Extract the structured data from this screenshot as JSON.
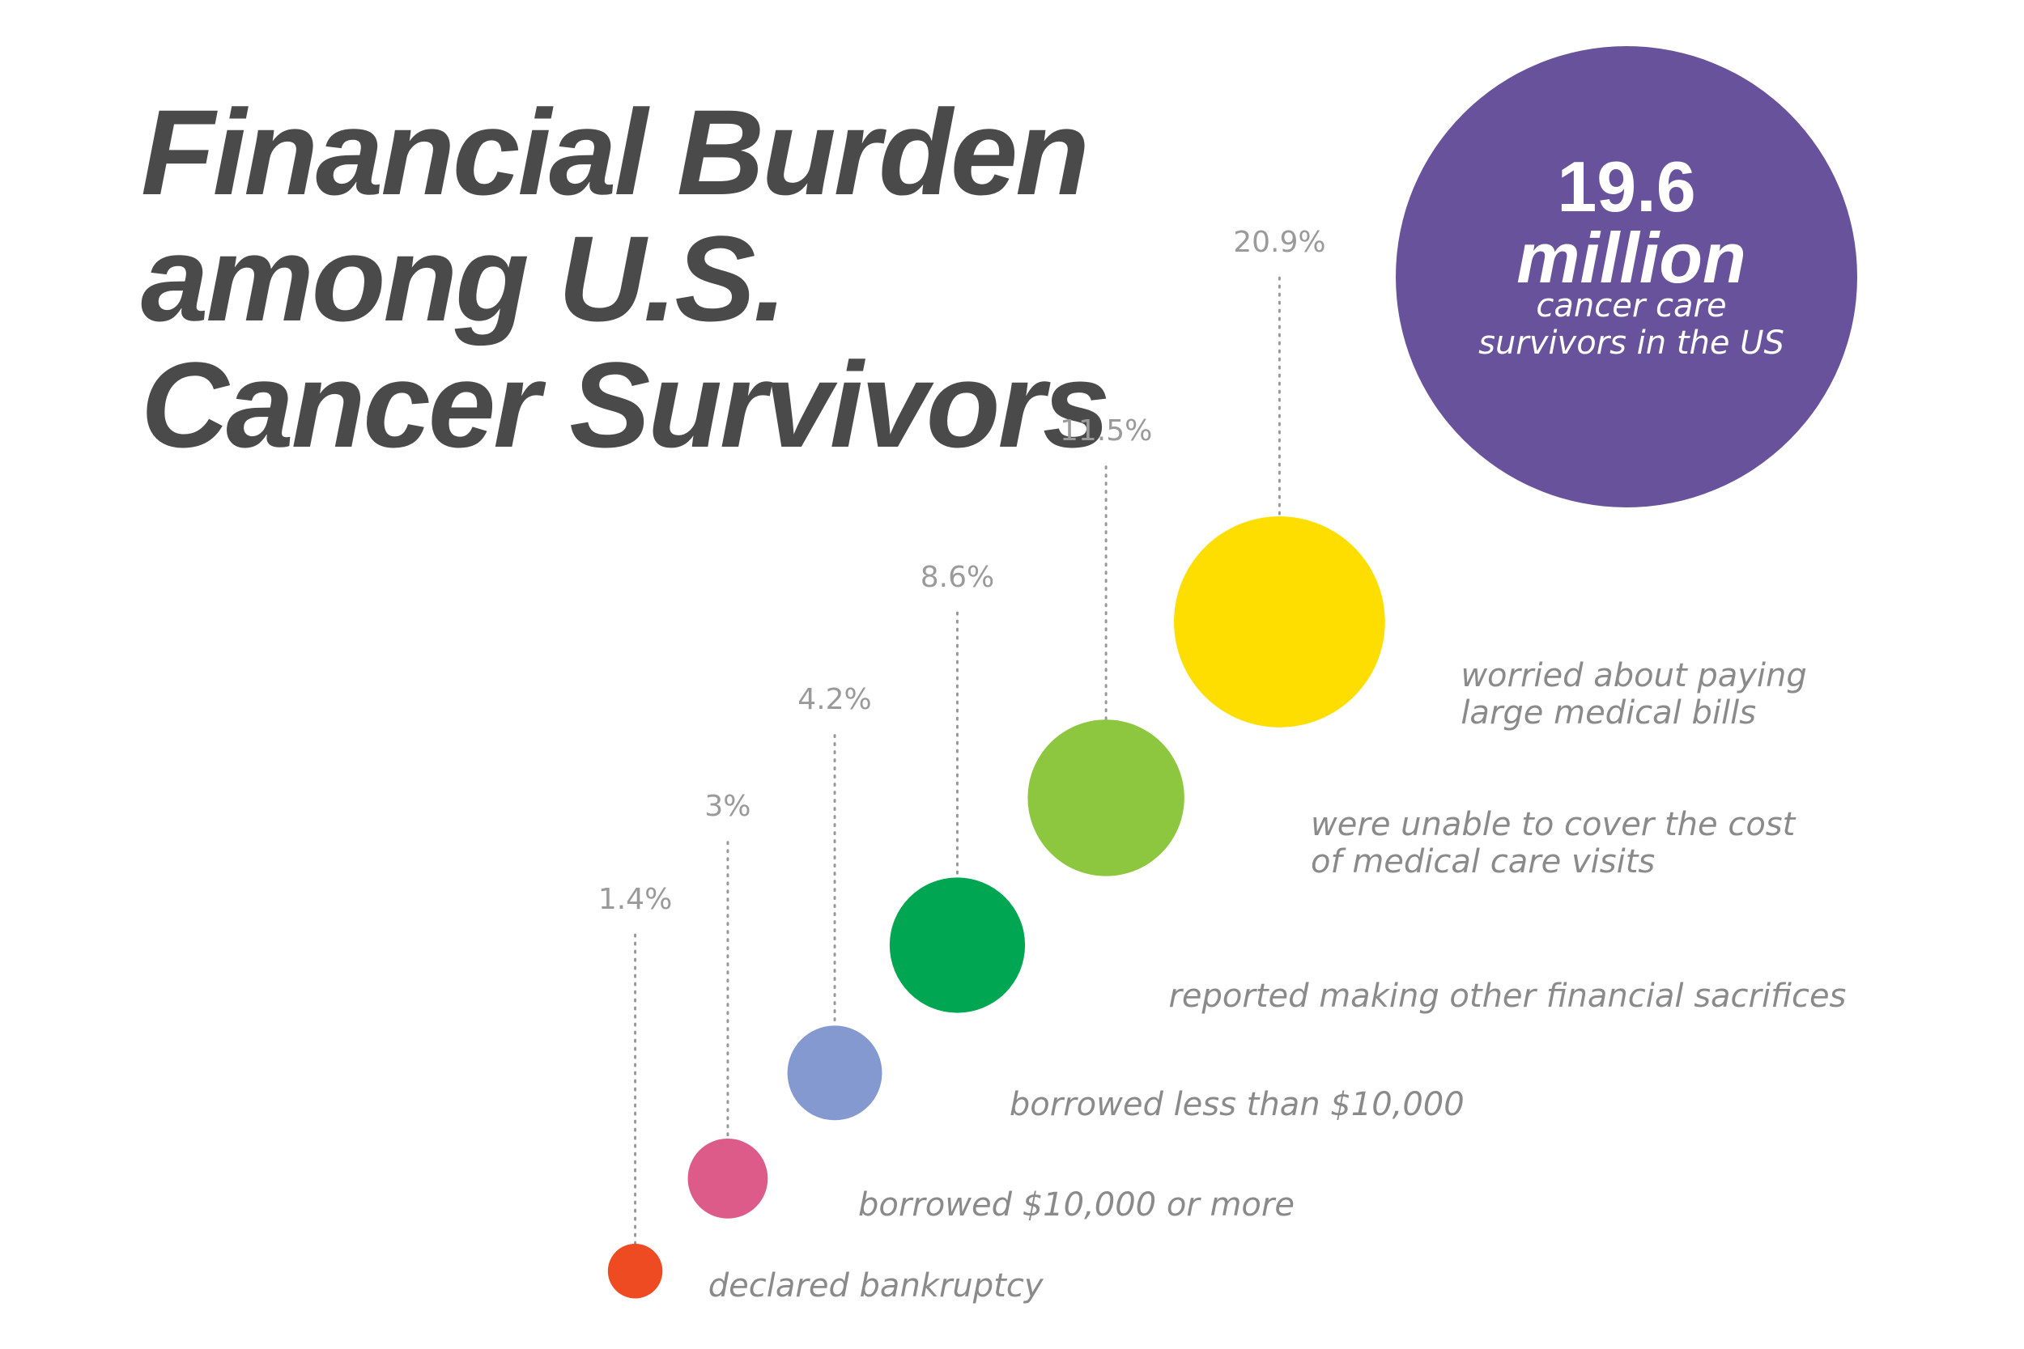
{
  "chart_data": {
    "type": "bubble",
    "title": "Financial Burden among U.S. Cancer Survivors",
    "highlight": {
      "value": 19.6,
      "unit": "million",
      "caption": "cancer care survivors in the US"
    },
    "categories": [
      "declared bankruptcy",
      "borrowed $10,000 or more",
      "borrowed less than $10,000",
      "reported making other financial sacrifices",
      "were unable to cover the cost of medical care visits",
      "worried about paying large medical bills"
    ],
    "values": [
      1.4,
      3,
      4.2,
      8.6,
      11.5,
      20.9
    ],
    "value_labels": [
      "1.4%",
      "3%",
      "4.2%",
      "8.6%",
      "11.5%",
      "20.9%"
    ],
    "colors": [
      "#ef4b23",
      "#dc5b88",
      "#8399cf",
      "#00a651",
      "#8dc63f",
      "#fedd00"
    ],
    "highlight_color": "#67529b"
  }
}
